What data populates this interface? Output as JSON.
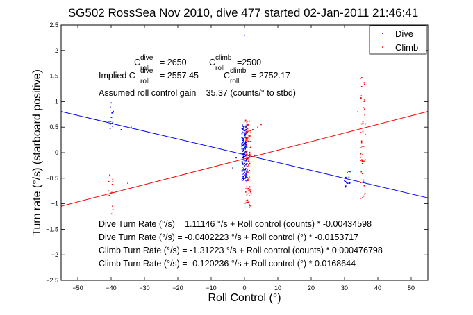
{
  "chart_data": {
    "type": "scatter",
    "title": "SG502 RossSea Nov 2010, dive 477 started 02-Jan-2011 21:46:41",
    "xlabel": "Roll Control (°)",
    "ylabel": "Turn rate (°/s) (starboard positive)",
    "xlim": [
      -55,
      55
    ],
    "ylim": [
      -2.5,
      2.5
    ],
    "xticks": [
      -50,
      -40,
      -30,
      -20,
      -10,
      0,
      10,
      20,
      30,
      40,
      50
    ],
    "yticks": [
      -2.5,
      -2,
      -1.5,
      -1,
      -0.5,
      0,
      0.5,
      1,
      1.5,
      2,
      2.5
    ],
    "ytick_labels": [
      "-2.5",
      "-2",
      "-1.5",
      "-1",
      "-0.5",
      "0",
      "0.5",
      "1",
      "1.5",
      "2",
      "2.5"
    ],
    "grid": false,
    "legend": {
      "position": "top-right",
      "entries": [
        {
          "name": "Dive",
          "color": "#0000ff"
        },
        {
          "name": "Climb",
          "color": "#ff0000"
        }
      ]
    },
    "fit_lines": [
      {
        "name": "Dive fit",
        "color": "#0000ff",
        "intercept": -0.0402223,
        "slope": -0.0153717
      },
      {
        "name": "Climb fit",
        "color": "#ff0000",
        "intercept": -0.120236,
        "slope": 0.0168644
      }
    ],
    "series": [
      {
        "name": "Dive",
        "color": "#0000ff",
        "clusters": [
          {
            "x": -40,
            "y_range": [
              0.45,
              1.0
            ],
            "count": 14
          },
          {
            "x": 0,
            "y_range": [
              -0.55,
              0.55
            ],
            "count": 150
          },
          {
            "x": 31,
            "y_range": [
              -0.7,
              -0.35
            ],
            "count": 12
          }
        ],
        "points": [
          {
            "x": -37,
            "y": 0.45
          },
          {
            "x": -34,
            "y": 0.5
          },
          {
            "x": -3.5,
            "y": -0.3
          },
          {
            "x": -2.5,
            "y": -0.1
          },
          {
            "x": 2.5,
            "y": 0.45
          },
          {
            "x": 3,
            "y": -0.05
          },
          {
            "x": 0,
            "y": 2.3
          },
          {
            "x": 30,
            "y": -0.55
          },
          {
            "x": 31,
            "y": -0.6
          }
        ]
      },
      {
        "name": "Climb",
        "color": "#ff0000",
        "clusters": [
          {
            "x": -40,
            "y_range": [
              -1.3,
              -0.4
            ],
            "count": 12
          },
          {
            "x": 1,
            "y_range": [
              -1.1,
              0.65
            ],
            "count": 100
          },
          {
            "x": 35.5,
            "y_range": [
              -0.9,
              1.5
            ],
            "count": 50
          }
        ],
        "points": [
          {
            "x": -35,
            "y": -0.6
          },
          {
            "x": 4,
            "y": 0.5
          },
          {
            "x": 5,
            "y": 0.55
          },
          {
            "x": 2,
            "y": -0.8
          },
          {
            "x": 34,
            "y": 0.8
          }
        ]
      }
    ],
    "annotations": {
      "c_dive_label": "C",
      "c_dive_sup": "dive",
      "c_dive_sub": "roll",
      "c_dive_value": "= 2650",
      "c_climb_label": "C",
      "c_climb_sup": "climb",
      "c_climb_sub": "roll",
      "c_climb_value": "=2500",
      "implied_prefix": "Implied C",
      "implied_dive_sup": "dive",
      "implied_dive_sub": "roll",
      "implied_dive_value": "= 2557.45",
      "implied_climb_label": "C",
      "implied_climb_sup": "climb",
      "implied_climb_sub": "roll",
      "implied_climb_value": "= 2752.17",
      "gain": "Assumed roll control gain = 35.37 (counts/° to stbd)",
      "eq1": "Dive Turn Rate (°/s) = 1.11146 °/s + Roll control (counts) * -0.00434598",
      "eq2": "Dive Turn Rate (°/s) = -0.0402223 °/s + Roll control (°) * -0.0153717",
      "eq3": "Climb Turn Rate (°/s) = -1.31223 °/s + Roll control (counts) * 0.000476798",
      "eq4": "Climb Turn Rate (°/s) = -0.120236 °/s + Roll control (°) * 0.0168644"
    }
  }
}
